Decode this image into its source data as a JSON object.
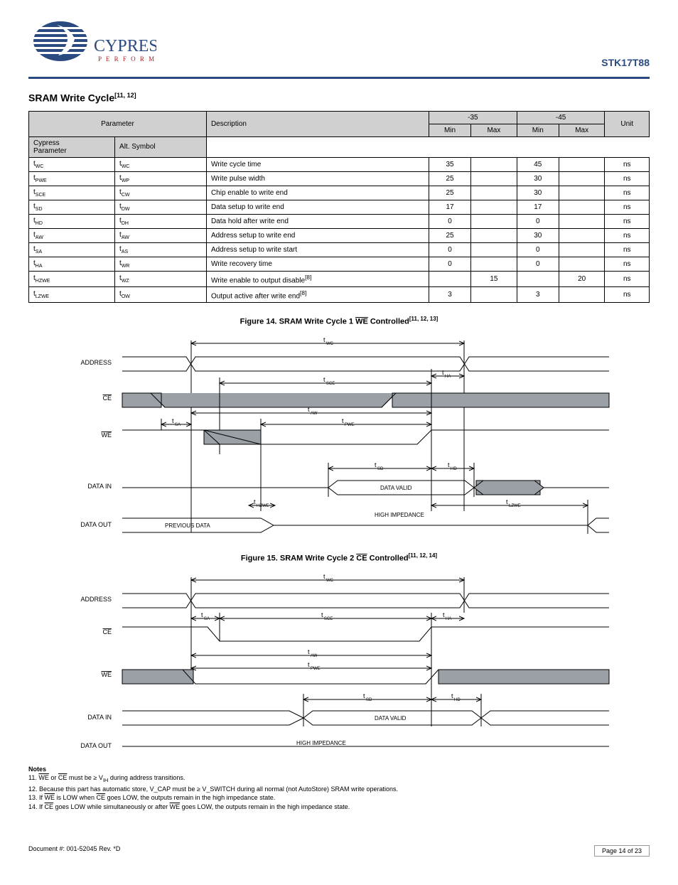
{
  "header": {
    "partno": "STK17T88"
  },
  "logo": {
    "brand": "CYPRESS",
    "tag": "P E R F O R M"
  },
  "table_title": "SRAM Write Cycle",
  "table_title_note": "[11, 12]",
  "columns": {
    "param": "Parameter",
    "alt": "Alt. Symbol",
    "desc": "Description",
    "col35": "-35",
    "col45": "-45",
    "min": "Min",
    "max": "Max",
    "unit": "Unit"
  },
  "rows": [
    {
      "p": "WC",
      "alt": "t_WC",
      "desc": "Write cycle time",
      "min35": "35",
      "max35": "",
      "min45": "45",
      "max45": "",
      "u": "ns"
    },
    {
      "p": "PWE",
      "alt": "t_WP",
      "desc": "Write pulse width",
      "min35": "25",
      "max35": "",
      "min45": "30",
      "max45": "",
      "u": "ns"
    },
    {
      "p": "SCE",
      "alt": "t_CW",
      "desc": "Chip enable to write end",
      "min35": "25",
      "max35": "",
      "min45": "30",
      "max45": "",
      "u": "ns"
    },
    {
      "p": "SD",
      "alt": "t_DW",
      "desc": "Data setup to write end",
      "min35": "17",
      "max35": "",
      "min45": "17",
      "max45": "",
      "u": "ns"
    },
    {
      "p": "HD",
      "alt": "t_DH",
      "desc": "Data hold after write end",
      "min35": "0",
      "max35": "",
      "min45": "0",
      "max45": "",
      "u": "ns"
    },
    {
      "p": "AW",
      "alt": "t_AW",
      "desc": "Address setup to write end",
      "min35": "25",
      "max35": "",
      "min45": "30",
      "max45": "",
      "u": "ns"
    },
    {
      "p": "SA",
      "alt": "t_AS",
      "desc": "Address setup to write start",
      "min35": "0",
      "max35": "",
      "min45": "0",
      "max45": "",
      "u": "ns"
    },
    {
      "p": "HA",
      "alt": "t_WR",
      "desc": "Write recovery time",
      "min35": "0",
      "max35": "",
      "min45": "0",
      "max45": "",
      "u": "ns"
    },
    {
      "p": "HZWE",
      "alt": "t_WZ",
      "desc": "Write enable to output disable",
      "min35": "",
      "max35": "15",
      "min45": "",
      "max45": "20",
      "u": "ns",
      "note": "[8]"
    },
    {
      "p": "LZWE",
      "alt": "t_OW",
      "desc": "Output active after write end",
      "min35": "3",
      "max35": "",
      "min45": "3",
      "max45": "",
      "u": "ns",
      "note": "[8]"
    }
  ],
  "fig1": {
    "caption_pre": "Figure 14. SRAM Write Cycle 1 ",
    "caption_sig": "WE",
    "caption_post": " Controlled",
    "caption_note": "[11, 12, 13]"
  },
  "fig2": {
    "caption_pre": "Figure 15. SRAM Write Cycle 2 ",
    "caption_sig": "CE",
    "caption_post": " Controlled",
    "caption_note": "[11, 12, 14]"
  },
  "timing_labels": {
    "address": "ADDRESS",
    "ce": "CE",
    "we": "WE",
    "datain": "DATA IN",
    "dataout": "DATA OUT",
    "wc": "WC",
    "sce": "SCE",
    "aw": "AW",
    "sa": "SA",
    "pwe": "PWE",
    "sd": "SD",
    "hd": "HD",
    "ha": "HA",
    "hzwe": "HZWE",
    "lzwe": "LZWE",
    "datavalid": "DATA VALID",
    "highz": "HIGH IMPEDANCE",
    "prevdata": "PREVIOUS DATA"
  },
  "notes": {
    "heading": "Notes",
    "n11": "11. WE or CE must be ≥ V_IH during address transitions.",
    "n12": "12. Because this part has automatic store, V_CAP must be ≥ V_SWITCH during all normal (not AutoStore) SRAM write operations.",
    "n13": "13. If WE is LOW when CE goes LOW, the outputs remain in the high impedance state.",
    "n14": "14. If CE goes LOW while simultaneously or after WE goes LOW, the outputs remain in the high impedance state."
  },
  "footer": {
    "docno": "Document #: 001-52045 Rev. *D",
    "page": "Page 14 of 23"
  },
  "colors": {
    "ink": "#000",
    "accent": "#2a4a80",
    "fillgrey": "#9aa0a6"
  }
}
